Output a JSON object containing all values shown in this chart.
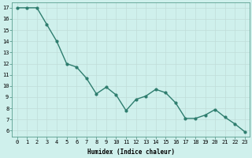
{
  "x": [
    0,
    1,
    2,
    3,
    4,
    5,
    6,
    7,
    8,
    9,
    10,
    11,
    12,
    13,
    14,
    15,
    16,
    17,
    18,
    19,
    20,
    21,
    22,
    23
  ],
  "y": [
    17,
    17,
    17,
    15.5,
    14,
    12,
    11.7,
    10.7,
    9.3,
    9.9,
    9.2,
    7.8,
    8.8,
    9.1,
    9.7,
    9.4,
    8.5,
    7.1,
    7.1,
    7.4,
    7.9,
    7.2,
    6.6,
    5.9
  ],
  "line_color": "#2e7d6e",
  "marker": "o",
  "marker_size": 2,
  "bg_color": "#cff0ec",
  "grid_color": "#c0ddd8",
  "xlabel": "Humidex (Indice chaleur)",
  "xlim": [
    -0.5,
    23.5
  ],
  "ylim": [
    5.5,
    17.5
  ],
  "xticks": [
    0,
    1,
    2,
    3,
    4,
    5,
    6,
    7,
    8,
    9,
    10,
    11,
    12,
    13,
    14,
    15,
    16,
    17,
    18,
    19,
    20,
    21,
    22,
    23
  ],
  "yticks": [
    6,
    7,
    8,
    9,
    10,
    11,
    12,
    13,
    14,
    15,
    16,
    17
  ],
  "xlabel_fontsize": 5.5,
  "tick_fontsize": 5.0,
  "line_width": 1.0
}
